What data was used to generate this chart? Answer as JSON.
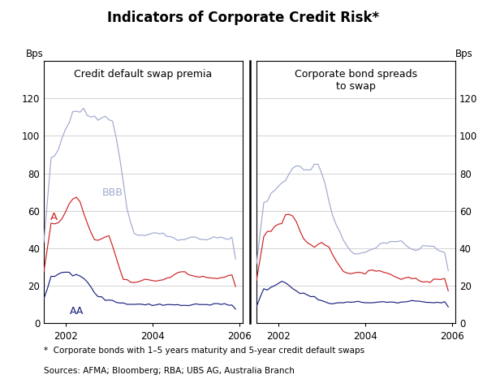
{
  "title": "Indicators of Corporate Credit Risk*",
  "left_panel_title": "Credit default swap premia",
  "right_panel_title": "Corporate bond spreads\nto swap",
  "ylabel_left": "Bps",
  "ylabel_right": "Bps",
  "ylim": [
    0,
    140
  ],
  "yticks": [
    0,
    20,
    40,
    60,
    80,
    100,
    120
  ],
  "footnote1": "*  Corporate bonds with 1–5 years maturity and 5-year credit default swaps",
  "footnote2": "Sources: AFMA; Bloomberg; RBA; UBS AG, Australia Branch",
  "color_BBB": "#a0a8d0",
  "color_A": "#cc2222",
  "color_AA": "#1a237e",
  "background_color": "#ffffff",
  "grid_color": "#cccccc",
  "xlim": [
    2001.5,
    2006.08
  ],
  "xticks": [
    2002,
    2004,
    2006
  ],
  "xticklabels": [
    "2002",
    "2004",
    "2006"
  ]
}
